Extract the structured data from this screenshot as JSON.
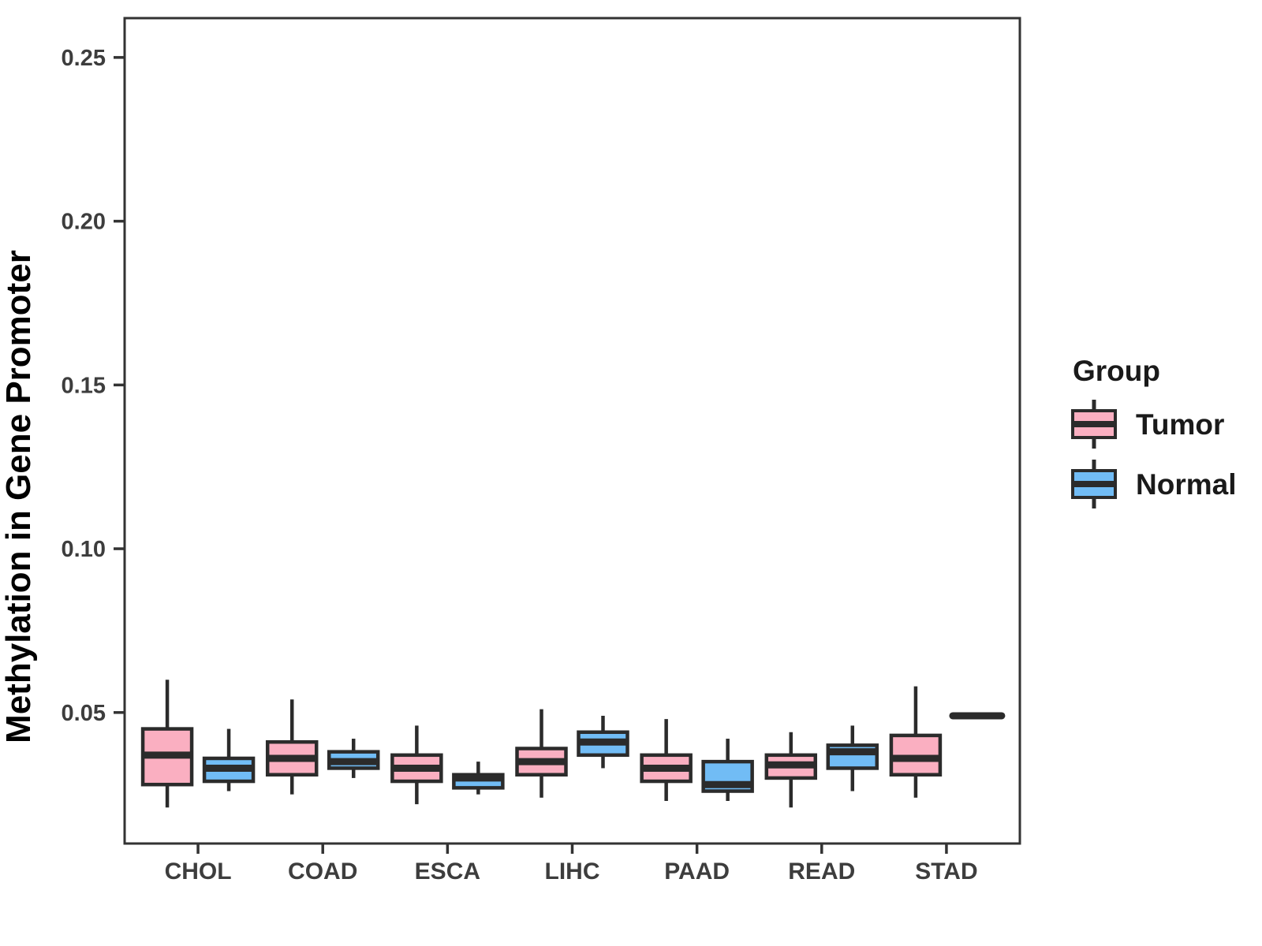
{
  "chart_data": {
    "type": "boxplot",
    "title": "",
    "xlabel": "",
    "ylabel": "Methylation in Gene Promoter",
    "categories": [
      "CHOL",
      "COAD",
      "ESCA",
      "LIHC",
      "PAAD",
      "READ",
      "STAD"
    ],
    "y_ticks": [
      "0.05",
      "0.10",
      "0.15",
      "0.20",
      "0.25"
    ],
    "y_tick_values": [
      0.05,
      0.1,
      0.15,
      0.2,
      0.25
    ],
    "ylim": [
      0.01,
      0.262
    ],
    "grid": false,
    "panel_border": true,
    "legend": {
      "title": "Group",
      "position": "right",
      "entries": [
        {
          "label": "Tumor",
          "color": "#FAAFC1"
        },
        {
          "label": "Normal",
          "color": "#71BCF5"
        }
      ]
    },
    "colors": {
      "tumor_fill": "#FAAFC1",
      "normal_fill": "#71BCF5",
      "stroke": "#2B2B2B",
      "axis_text": "#3D3D3D",
      "panel_border_color": "#333333"
    },
    "series": [
      {
        "name": "Tumor",
        "color": "#FAAFC1",
        "boxes": [
          {
            "category": "CHOL",
            "min": 0.021,
            "q1": 0.028,
            "median": 0.037,
            "q3": 0.045,
            "max": 0.06
          },
          {
            "category": "COAD",
            "min": 0.025,
            "q1": 0.031,
            "median": 0.036,
            "q3": 0.041,
            "max": 0.054
          },
          {
            "category": "ESCA",
            "min": 0.022,
            "q1": 0.029,
            "median": 0.033,
            "q3": 0.037,
            "max": 0.046
          },
          {
            "category": "LIHC",
            "min": 0.024,
            "q1": 0.031,
            "median": 0.035,
            "q3": 0.039,
            "max": 0.051
          },
          {
            "category": "PAAD",
            "min": 0.023,
            "q1": 0.029,
            "median": 0.033,
            "q3": 0.037,
            "max": 0.048
          },
          {
            "category": "READ",
            "min": 0.021,
            "q1": 0.03,
            "median": 0.034,
            "q3": 0.037,
            "max": 0.044
          },
          {
            "category": "STAD",
            "min": 0.024,
            "q1": 0.031,
            "median": 0.036,
            "q3": 0.043,
            "max": 0.058
          }
        ]
      },
      {
        "name": "Normal",
        "color": "#71BCF5",
        "boxes": [
          {
            "category": "CHOL",
            "min": 0.026,
            "q1": 0.029,
            "median": 0.033,
            "q3": 0.036,
            "max": 0.045
          },
          {
            "category": "COAD",
            "min": 0.03,
            "q1": 0.033,
            "median": 0.035,
            "q3": 0.038,
            "max": 0.042
          },
          {
            "category": "ESCA",
            "min": 0.025,
            "q1": 0.027,
            "median": 0.03,
            "q3": 0.031,
            "max": 0.035
          },
          {
            "category": "LIHC",
            "min": 0.033,
            "q1": 0.037,
            "median": 0.041,
            "q3": 0.044,
            "max": 0.049
          },
          {
            "category": "PAAD",
            "min": 0.023,
            "q1": 0.026,
            "median": 0.028,
            "q3": 0.035,
            "max": 0.042
          },
          {
            "category": "READ",
            "min": 0.026,
            "q1": 0.033,
            "median": 0.038,
            "q3": 0.04,
            "max": 0.046
          },
          {
            "category": "STAD",
            "min": 0.049,
            "q1": 0.049,
            "median": 0.049,
            "q3": 0.049,
            "max": 0.049
          }
        ]
      }
    ]
  }
}
